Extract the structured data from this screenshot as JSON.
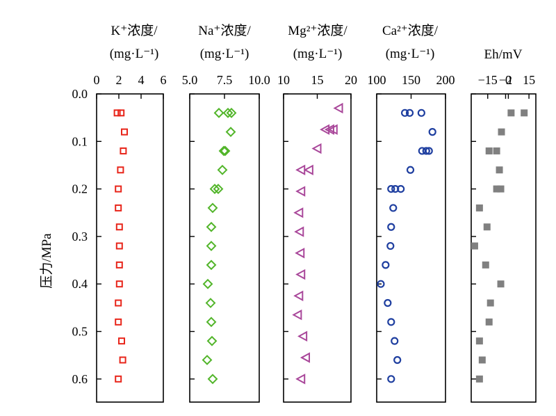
{
  "chart_data": {
    "type": "scatter",
    "ylabel": "压力/MPa",
    "y_ticks": [
      "0.0",
      "0.1",
      "0.2",
      "0.3",
      "0.4",
      "0.5",
      "0.6"
    ],
    "ylim": [
      0,
      0.66
    ],
    "y_inverted": true,
    "grid": false,
    "panels": [
      {
        "id": "k",
        "label_line1": "K⁺浓度/",
        "label_line2": "(mg·L⁻¹)",
        "xlim": [
          0,
          6
        ],
        "ticks": [
          {
            "v": 0,
            "t": "0"
          },
          {
            "v": 2,
            "t": "2"
          },
          {
            "v": 4,
            "t": "4"
          },
          {
            "v": 6,
            "t": "6"
          }
        ],
        "marker": "square",
        "color": "#e8251a",
        "points": [
          {
            "x": 1.85,
            "y": 0.04
          },
          {
            "x": 2.2,
            "y": 0.04
          },
          {
            "x": 2.5,
            "y": 0.08
          },
          {
            "x": 2.4,
            "y": 0.12
          },
          {
            "x": 2.15,
            "y": 0.16
          },
          {
            "x": 1.95,
            "y": 0.2
          },
          {
            "x": 1.95,
            "y": 0.24
          },
          {
            "x": 2.05,
            "y": 0.28
          },
          {
            "x": 2.05,
            "y": 0.32
          },
          {
            "x": 2.05,
            "y": 0.36
          },
          {
            "x": 2.05,
            "y": 0.4
          },
          {
            "x": 1.95,
            "y": 0.44
          },
          {
            "x": 1.95,
            "y": 0.48
          },
          {
            "x": 2.25,
            "y": 0.52
          },
          {
            "x": 2.35,
            "y": 0.56
          },
          {
            "x": 1.95,
            "y": 0.6
          }
        ]
      },
      {
        "id": "na",
        "label_line1": "Na⁺浓度/",
        "label_line2": "(mg·L⁻¹)",
        "xlim": [
          5,
          10
        ],
        "ticks": [
          {
            "v": 5,
            "t": "5.0"
          },
          {
            "v": 7.5,
            "t": "7.5"
          },
          {
            "v": 10,
            "t": "10.0"
          }
        ],
        "marker": "diamond",
        "color": "#52b52a",
        "points": [
          {
            "x": 7.1,
            "y": 0.04
          },
          {
            "x": 7.75,
            "y": 0.04
          },
          {
            "x": 8.0,
            "y": 0.04
          },
          {
            "x": 7.95,
            "y": 0.08
          },
          {
            "x": 7.55,
            "y": 0.12
          },
          {
            "x": 7.45,
            "y": 0.12
          },
          {
            "x": 7.35,
            "y": 0.16
          },
          {
            "x": 6.8,
            "y": 0.2
          },
          {
            "x": 7.05,
            "y": 0.2
          },
          {
            "x": 6.65,
            "y": 0.24
          },
          {
            "x": 6.55,
            "y": 0.28
          },
          {
            "x": 6.55,
            "y": 0.32
          },
          {
            "x": 6.55,
            "y": 0.36
          },
          {
            "x": 6.3,
            "y": 0.4
          },
          {
            "x": 6.5,
            "y": 0.44
          },
          {
            "x": 6.55,
            "y": 0.48
          },
          {
            "x": 6.6,
            "y": 0.52
          },
          {
            "x": 6.25,
            "y": 0.56
          },
          {
            "x": 6.65,
            "y": 0.6
          }
        ]
      },
      {
        "id": "mg",
        "label_line1": "Mg²⁺浓度/",
        "label_line2": "(mg·L⁻¹)",
        "xlim": [
          10,
          20
        ],
        "ticks": [
          {
            "v": 10,
            "t": "10"
          },
          {
            "v": 15,
            "t": "15"
          },
          {
            "v": 20,
            "t": "20"
          }
        ],
        "marker": "triangle-left",
        "color": "#a9479a",
        "points": [
          {
            "x": 18.2,
            "y": 0.03
          },
          {
            "x": 16.2,
            "y": 0.075
          },
          {
            "x": 16.9,
            "y": 0.075
          },
          {
            "x": 17.4,
            "y": 0.075
          },
          {
            "x": 15.0,
            "y": 0.115
          },
          {
            "x": 13.8,
            "y": 0.16
          },
          {
            "x": 12.6,
            "y": 0.16
          },
          {
            "x": 12.6,
            "y": 0.205
          },
          {
            "x": 12.3,
            "y": 0.25
          },
          {
            "x": 12.4,
            "y": 0.29
          },
          {
            "x": 12.5,
            "y": 0.335
          },
          {
            "x": 12.6,
            "y": 0.38
          },
          {
            "x": 12.3,
            "y": 0.425
          },
          {
            "x": 12.1,
            "y": 0.465
          },
          {
            "x": 12.9,
            "y": 0.51
          },
          {
            "x": 13.3,
            "y": 0.555
          },
          {
            "x": 12.6,
            "y": 0.6
          }
        ]
      },
      {
        "id": "ca",
        "label_line1": "Ca²⁺浓度/",
        "label_line2": "(mg·L⁻¹)",
        "xlim": [
          100,
          200
        ],
        "ticks": [
          {
            "v": 100,
            "t": "100"
          },
          {
            "v": 150,
            "t": "150"
          },
          {
            "v": 200,
            "t": "200"
          }
        ],
        "marker": "circle",
        "color": "#1f3fa0",
        "points": [
          {
            "x": 141,
            "y": 0.04
          },
          {
            "x": 148,
            "y": 0.04
          },
          {
            "x": 165,
            "y": 0.04
          },
          {
            "x": 181,
            "y": 0.08
          },
          {
            "x": 166,
            "y": 0.12
          },
          {
            "x": 172,
            "y": 0.12
          },
          {
            "x": 176,
            "y": 0.12
          },
          {
            "x": 149,
            "y": 0.16
          },
          {
            "x": 121,
            "y": 0.2
          },
          {
            "x": 127,
            "y": 0.2
          },
          {
            "x": 135,
            "y": 0.2
          },
          {
            "x": 124,
            "y": 0.24
          },
          {
            "x": 121,
            "y": 0.28
          },
          {
            "x": 120,
            "y": 0.32
          },
          {
            "x": 113,
            "y": 0.36
          },
          {
            "x": 106,
            "y": 0.4
          },
          {
            "x": 116,
            "y": 0.44
          },
          {
            "x": 121,
            "y": 0.48
          },
          {
            "x": 126,
            "y": 0.52
          },
          {
            "x": 130,
            "y": 0.56
          },
          {
            "x": 121,
            "y": 0.6
          }
        ]
      },
      {
        "id": "eh",
        "label_line1": "",
        "label_line2": "Eh/mV",
        "xlim": [
          -27,
          20
        ],
        "ticks": [
          {
            "v": -15,
            "t": "−15"
          },
          {
            "v": -2,
            "t": "−2"
          },
          {
            "v": 0,
            "t": "0"
          },
          {
            "v": 15,
            "t": "15"
          }
        ],
        "marker": "filled-square",
        "color": "#808080",
        "points": [
          {
            "x": 2,
            "y": 0.04
          },
          {
            "x": 11.5,
            "y": 0.04
          },
          {
            "x": -5,
            "y": 0.08
          },
          {
            "x": -14,
            "y": 0.12
          },
          {
            "x": -8.5,
            "y": 0.12
          },
          {
            "x": -6.5,
            "y": 0.16
          },
          {
            "x": -8.5,
            "y": 0.2
          },
          {
            "x": -5.5,
            "y": 0.2
          },
          {
            "x": -21,
            "y": 0.24
          },
          {
            "x": -15.5,
            "y": 0.28
          },
          {
            "x": -24.5,
            "y": 0.32
          },
          {
            "x": -16.5,
            "y": 0.36
          },
          {
            "x": -5.5,
            "y": 0.4
          },
          {
            "x": -13,
            "y": 0.44
          },
          {
            "x": -14,
            "y": 0.48
          },
          {
            "x": -21,
            "y": 0.52
          },
          {
            "x": -19,
            "y": 0.56
          },
          {
            "x": -21,
            "y": 0.6
          }
        ]
      }
    ]
  }
}
